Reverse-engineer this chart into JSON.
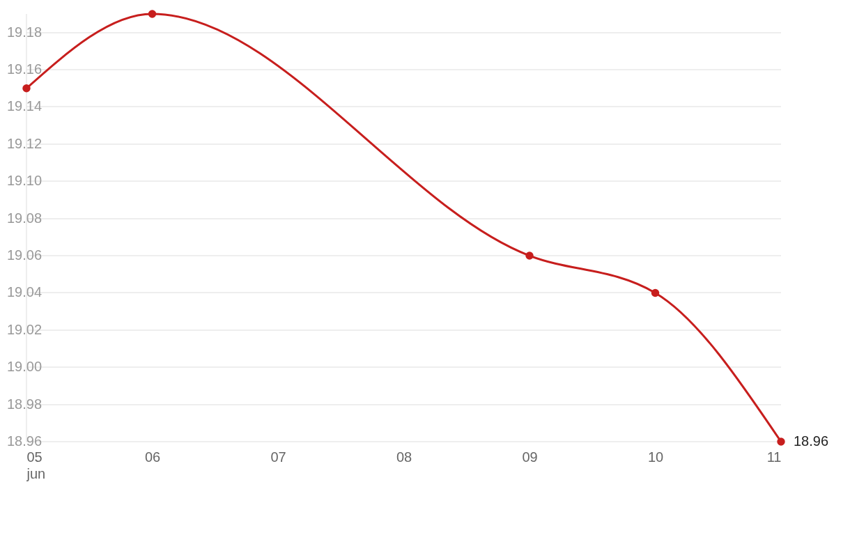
{
  "chart_data": {
    "type": "line",
    "x": [
      "--06-05",
      "--06-06",
      "--06-09",
      "--06-10",
      "--06-11"
    ],
    "series": [
      {
        "color": "#c71e1d",
        "values": [
          19.15,
          19.19,
          19.06,
          19.04,
          18.96
        ],
        "value_labels": [
          null,
          null,
          null,
          null,
          "18.96"
        ]
      }
    ],
    "xlim": [
      "--06-05",
      "--06-11"
    ],
    "xticks": [
      {
        "value": "--06-05",
        "label": "05\njun"
      },
      {
        "value": "--06-06",
        "label": "06"
      },
      {
        "value": "--06-07",
        "label": "07"
      },
      {
        "value": "--06-08",
        "label": "08"
      },
      {
        "value": "--06-09",
        "label": "09"
      },
      {
        "value": "--06-10",
        "label": "10"
      },
      {
        "value": "--06-11",
        "label": "11"
      }
    ],
    "ylim": [
      18.96,
      19.19
    ],
    "yticks": [
      18.96,
      18.98,
      {
        "value": 19,
        "label": "19.00"
      },
      19.02,
      19.04,
      19.06,
      19.08,
      {
        "value": 19.1,
        "label": "19.10"
      },
      19.12,
      19.14,
      19.16,
      19.18
    ],
    "grid": "y",
    "marker": "circle",
    "line_style": "solid",
    "legend": false
  }
}
